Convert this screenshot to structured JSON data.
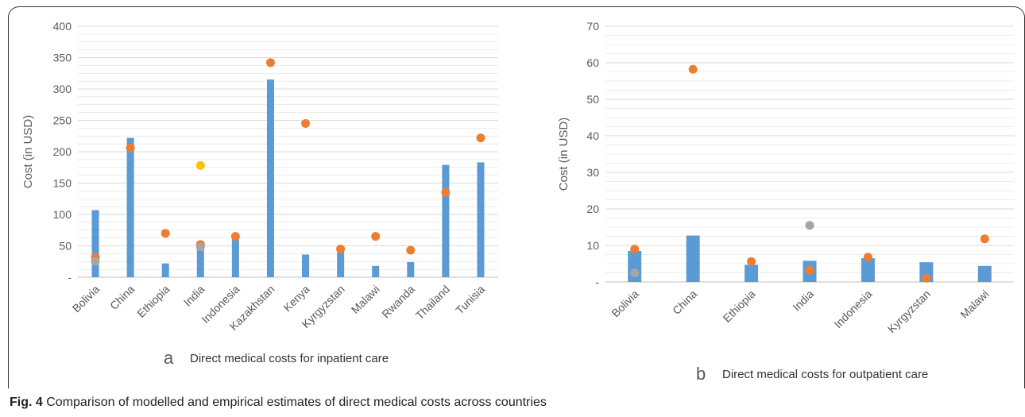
{
  "figure": {
    "caption_label": "Fig. 4",
    "caption_text": "Comparison of modelled and empirical estimates of direct medical costs across countries"
  },
  "colors": {
    "bar": "#5b9bd5",
    "orange": "#ed7d31",
    "grey": "#a5a5a5",
    "yellow": "#ffc000",
    "grid": "#d9d9d9",
    "axis_text": "#595959"
  },
  "chart_data": [
    {
      "type": "bar",
      "panel_letter": "a",
      "title": "Direct medical costs for inpatient care",
      "ylabel": "Cost (in USD)",
      "xlabel": "",
      "ylim": [
        0,
        400
      ],
      "yticks": [
        "-",
        "50",
        "100",
        "150",
        "200",
        "250",
        "300",
        "350",
        "400"
      ],
      "grid": true,
      "categories": [
        "Bolivia",
        "China",
        "Ethiopia",
        "India",
        "Indonesia",
        "Kazakhstan",
        "Kenya",
        "Kyrgyzstan",
        "Malawi",
        "Rwanda",
        "Thailand",
        "Tunisia"
      ],
      "bars": [
        107,
        222,
        22,
        57,
        65,
        315,
        36,
        40,
        18,
        24,
        179,
        183
      ],
      "points": [
        {
          "color": "orange",
          "values": [
            32,
            206,
            70,
            52,
            65,
            342,
            245,
            45,
            65,
            43,
            135,
            222
          ]
        },
        {
          "color": "grey",
          "values": [
            25,
            null,
            null,
            48,
            null,
            null,
            null,
            null,
            null,
            null,
            null,
            null
          ]
        },
        {
          "color": "yellow",
          "values": [
            null,
            null,
            null,
            178,
            null,
            null,
            null,
            null,
            null,
            null,
            null,
            null
          ]
        }
      ]
    },
    {
      "type": "bar",
      "panel_letter": "b",
      "title": "Direct medical costs for outpatient care",
      "ylabel": "Cost (in USD)",
      "xlabel": "",
      "ylim": [
        0,
        70
      ],
      "yticks": [
        "-",
        "10",
        "20",
        "30",
        "40",
        "50",
        "60",
        "70"
      ],
      "grid": true,
      "categories": [
        "Bolivia",
        "China",
        "Ethiopia",
        "India",
        "Indonesia",
        "Kyrgyzstan",
        "Malawi"
      ],
      "bars": [
        8.5,
        12.7,
        4.7,
        5.8,
        6.5,
        5.4,
        4.4
      ],
      "points": [
        {
          "color": "orange",
          "values": [
            9,
            58.2,
            5.6,
            3.2,
            6.8,
            1,
            11.8
          ]
        },
        {
          "color": "grey",
          "values": [
            2.5,
            null,
            null,
            15.5,
            null,
            null,
            null
          ]
        }
      ]
    }
  ]
}
